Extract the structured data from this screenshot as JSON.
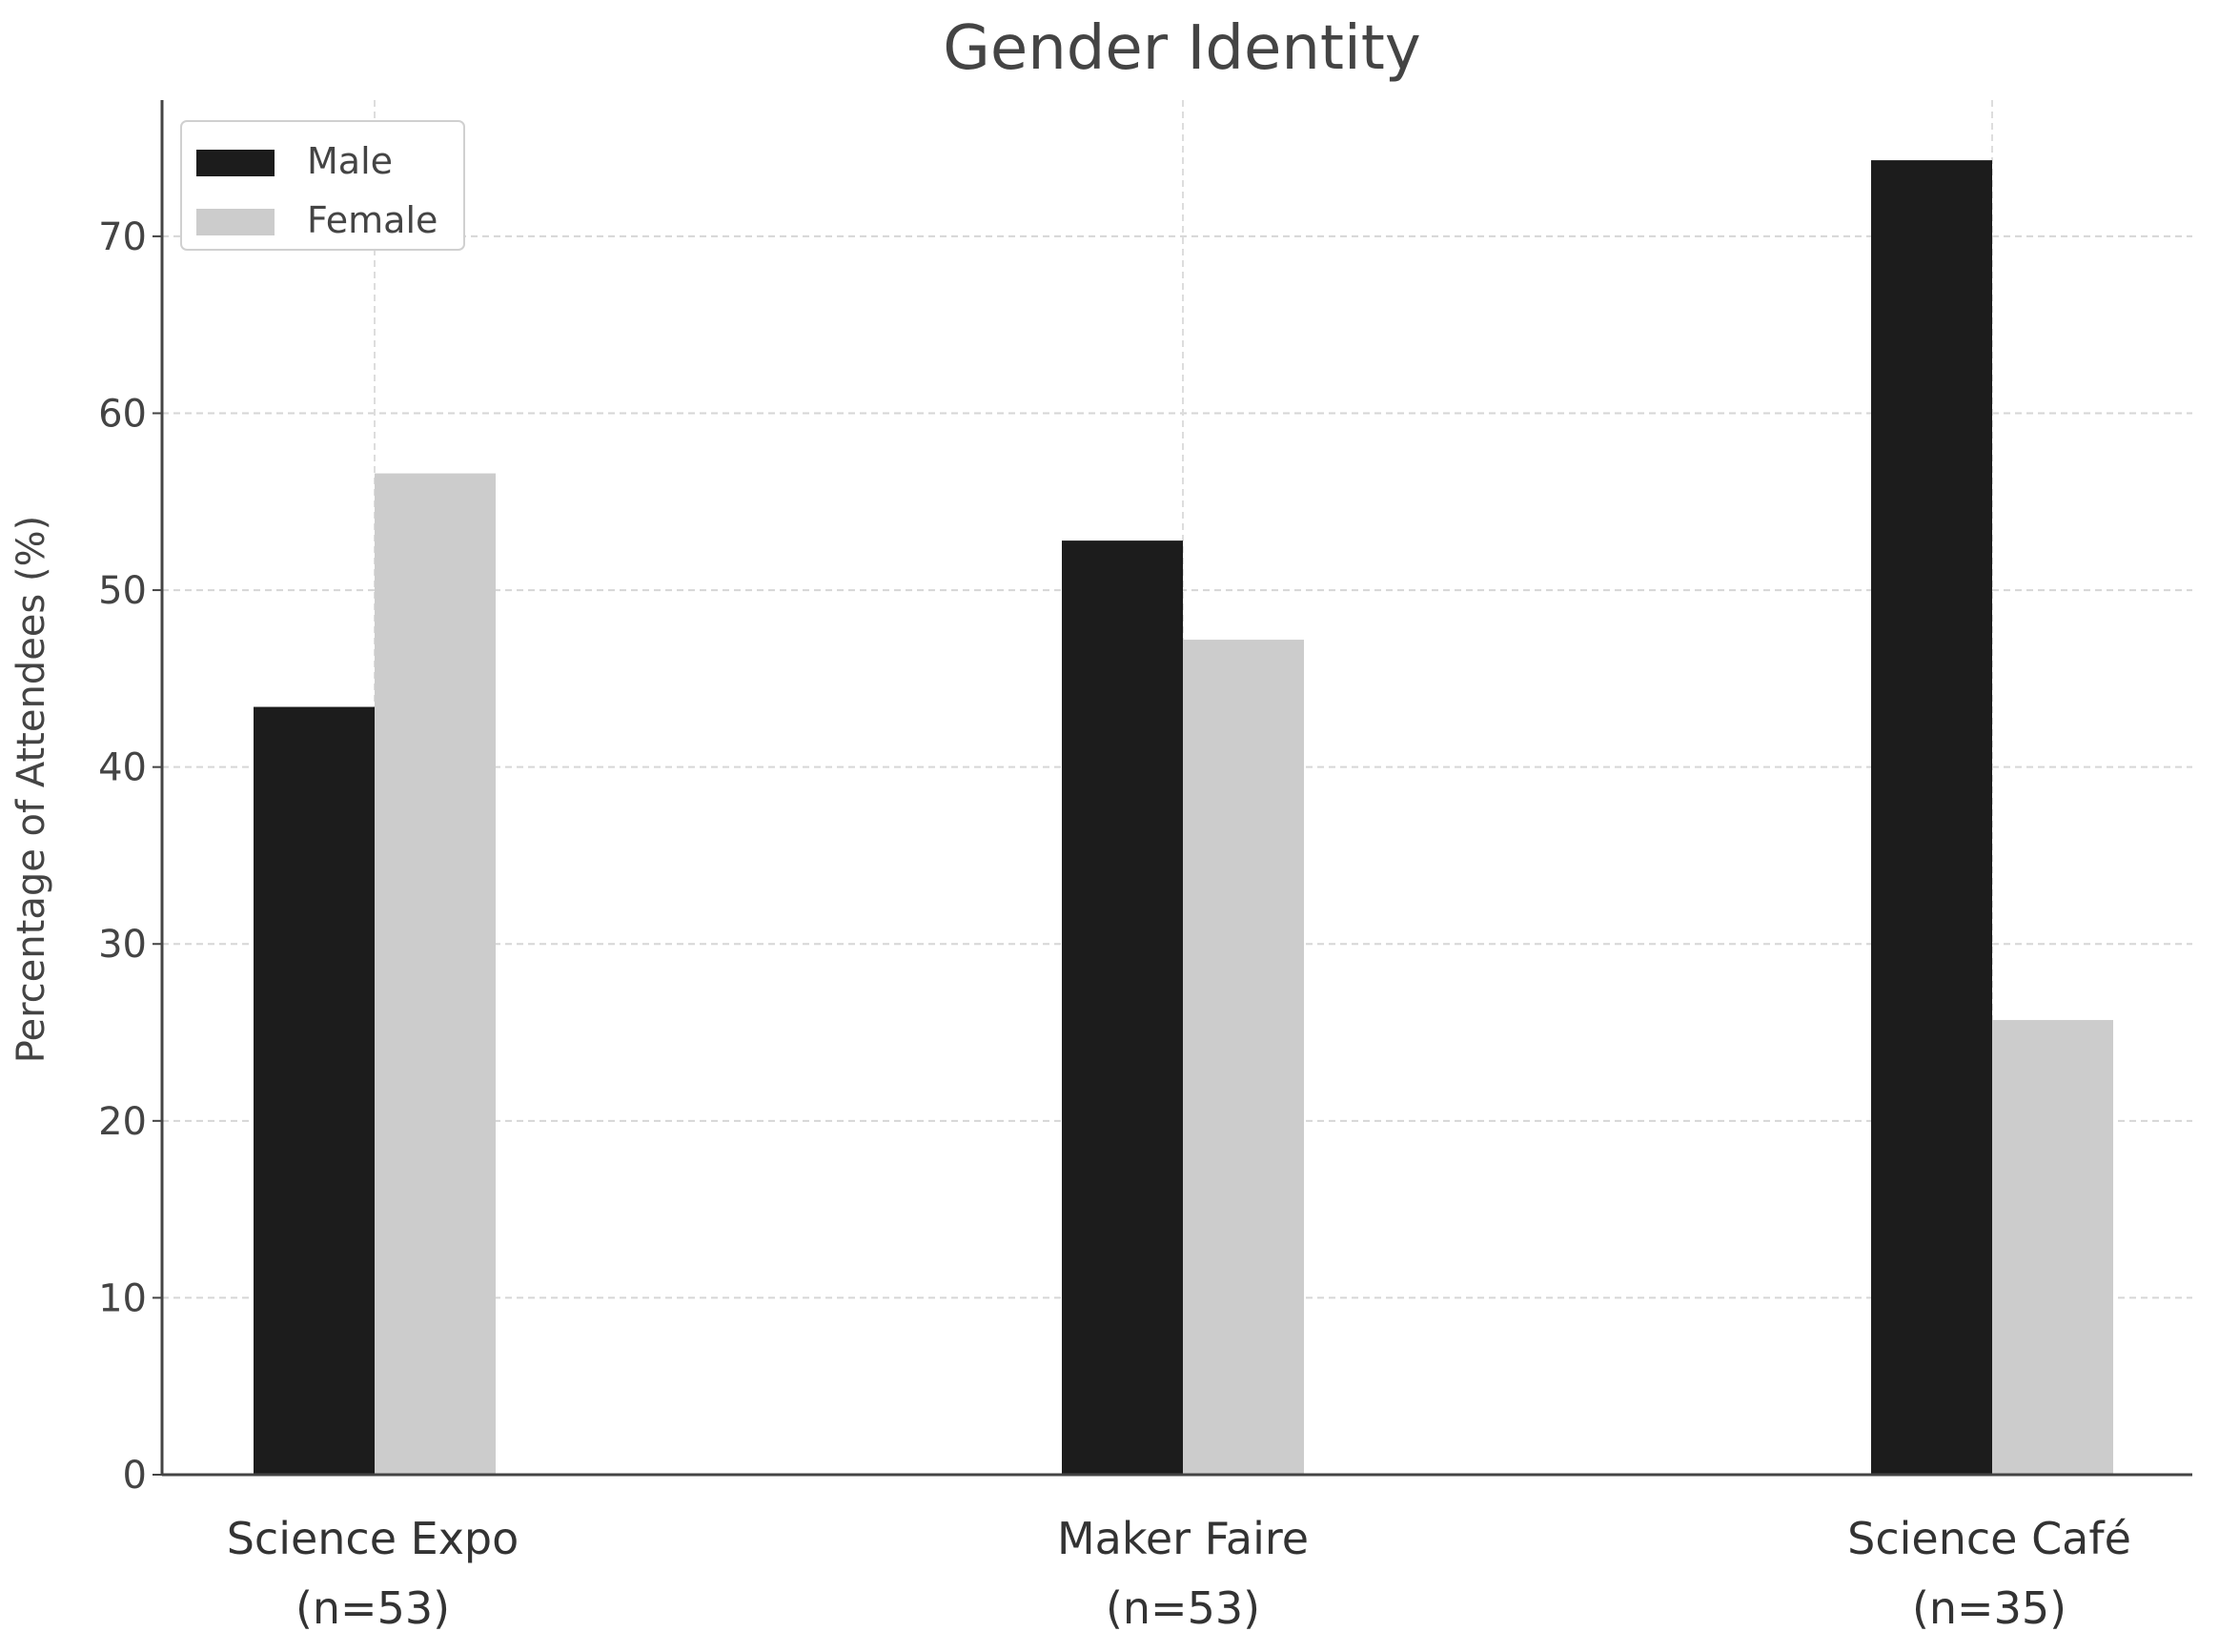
{
  "chart_data": {
    "type": "bar",
    "title": "Gender Identity",
    "xlabel": "",
    "ylabel": "Percentage of Attendees (%)",
    "categories": [
      [
        "Science Expo",
        "(n=53)"
      ],
      [
        "Maker Faire",
        "(n=53)"
      ],
      [
        "Science Café",
        "(n=35)"
      ]
    ],
    "series": [
      {
        "name": "Male",
        "values": [
          43.4,
          52.8,
          74.3
        ],
        "color": "#1c1c1c"
      },
      {
        "name": "Female",
        "values": [
          56.6,
          47.2,
          25.7
        ],
        "color": "#cccccc"
      }
    ],
    "ylim": [
      0,
      77.7
    ],
    "yticks": [
      0,
      10,
      20,
      30,
      40,
      50,
      60,
      70
    ],
    "grid": true,
    "legend_position": "top-left"
  }
}
